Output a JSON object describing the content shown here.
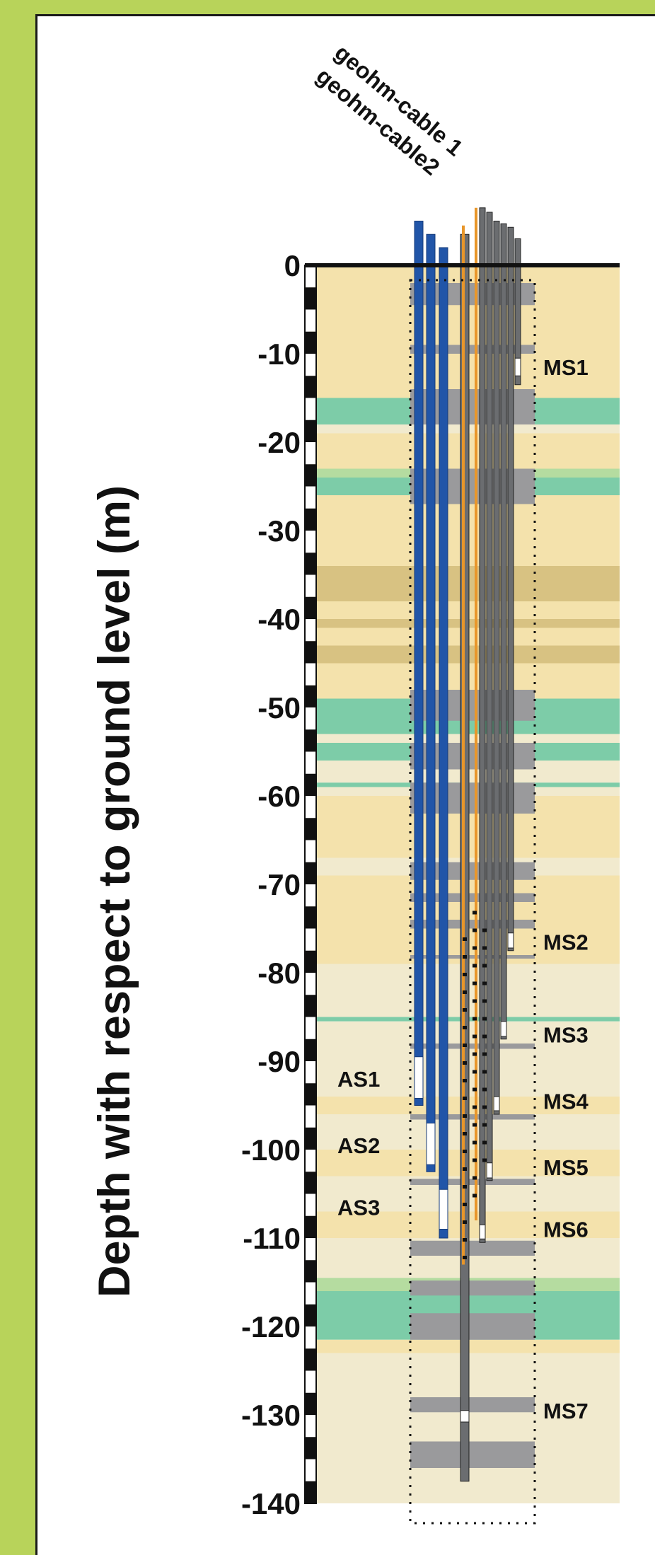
{
  "axis": {
    "title": "Depth with respect to ground level (m)",
    "min": -140,
    "max": 0,
    "ticks": [
      "0",
      "-10",
      "-20",
      "-30",
      "-40",
      "-50",
      "-60",
      "-70",
      "-80",
      "-90",
      "-100",
      "-110",
      "-120",
      "-130",
      "-140"
    ]
  },
  "cable_labels": [
    "geohm-cable 1",
    "geohm-cable2"
  ],
  "ms_labels": [
    {
      "label": "MS1",
      "depth": -11.5
    },
    {
      "label": "MS2",
      "depth": -76.5
    },
    {
      "label": "MS3",
      "depth": -87
    },
    {
      "label": "MS4",
      "depth": -94.5
    },
    {
      "label": "MS5",
      "depth": -102
    },
    {
      "label": "MS6",
      "depth": -109
    },
    {
      "label": "MS7",
      "depth": -129.5
    }
  ],
  "as_labels": [
    {
      "label": "AS1",
      "depth": -92
    },
    {
      "label": "AS2",
      "depth": -99.5
    },
    {
      "label": "AS3",
      "depth": -106.5
    }
  ],
  "colors": {
    "frame_background": "#b8d35a",
    "sand": "#f4e2ac",
    "light_sand": "#f1eace",
    "dark_sand": "#d8c282",
    "clay": "#7dcca8",
    "clay_transition": "#b5dca0",
    "gray_layer": "#9a9a9c",
    "blue_tube": "#2155a8",
    "orange_cable": "#e8962a",
    "gray_tube": "#6b6d70"
  },
  "strata": [
    {
      "top": 0,
      "bottom": -15,
      "type": "sand"
    },
    {
      "top": -15,
      "bottom": -18,
      "type": "clay"
    },
    {
      "top": -18,
      "bottom": -19,
      "type": "light_sand"
    },
    {
      "top": -19,
      "bottom": -23,
      "type": "sand"
    },
    {
      "top": -23,
      "bottom": -24,
      "type": "clay_transition"
    },
    {
      "top": -24,
      "bottom": -26,
      "type": "clay"
    },
    {
      "top": -26,
      "bottom": -34,
      "type": "sand"
    },
    {
      "top": -34,
      "bottom": -38,
      "type": "dark_sand"
    },
    {
      "top": -38,
      "bottom": -40,
      "type": "sand"
    },
    {
      "top": -40,
      "bottom": -41,
      "type": "dark_sand"
    },
    {
      "top": -41,
      "bottom": -43,
      "type": "sand"
    },
    {
      "top": -43,
      "bottom": -45,
      "type": "dark_sand"
    },
    {
      "top": -45,
      "bottom": -49,
      "type": "sand"
    },
    {
      "top": -49,
      "bottom": -53,
      "type": "clay"
    },
    {
      "top": -53,
      "bottom": -54,
      "type": "light_sand"
    },
    {
      "top": -54,
      "bottom": -56,
      "type": "clay"
    },
    {
      "top": -56,
      "bottom": -58.5,
      "type": "light_sand"
    },
    {
      "top": -58.5,
      "bottom": -59,
      "type": "clay"
    },
    {
      "top": -59,
      "bottom": -60,
      "type": "light_sand"
    },
    {
      "top": -60,
      "bottom": -67,
      "type": "sand"
    },
    {
      "top": -67,
      "bottom": -69,
      "type": "light_sand"
    },
    {
      "top": -69,
      "bottom": -76,
      "type": "sand"
    },
    {
      "top": -76,
      "bottom": -79,
      "type": "sand"
    },
    {
      "top": -79,
      "bottom": -85,
      "type": "light_sand"
    },
    {
      "top": -85,
      "bottom": -85.5,
      "type": "clay"
    },
    {
      "top": -85.5,
      "bottom": -94,
      "type": "light_sand"
    },
    {
      "top": -94,
      "bottom": -96,
      "type": "sand"
    },
    {
      "top": -96,
      "bottom": -100,
      "type": "light_sand"
    },
    {
      "top": -100,
      "bottom": -103,
      "type": "sand"
    },
    {
      "top": -103,
      "bottom": -107,
      "type": "light_sand"
    },
    {
      "top": -107,
      "bottom": -110,
      "type": "sand"
    },
    {
      "top": -110,
      "bottom": -114.5,
      "type": "light_sand"
    },
    {
      "top": -114.5,
      "bottom": -116,
      "type": "clay_transition"
    },
    {
      "top": -116,
      "bottom": -121.5,
      "type": "clay"
    },
    {
      "top": -121.5,
      "bottom": -123,
      "type": "sand"
    },
    {
      "top": -123,
      "bottom": -140,
      "type": "light_sand"
    }
  ],
  "gray_layers": [
    {
      "top": -2,
      "bottom": -4.5
    },
    {
      "top": -9,
      "bottom": -10
    },
    {
      "top": -14,
      "bottom": -18
    },
    {
      "top": -23,
      "bottom": -27
    },
    {
      "top": -48,
      "bottom": -51.5
    },
    {
      "top": -54,
      "bottom": -57
    },
    {
      "top": -58.5,
      "bottom": -62
    },
    {
      "top": -67.5,
      "bottom": -69.5
    },
    {
      "top": -71,
      "bottom": -72
    },
    {
      "top": -74,
      "bottom": -75
    },
    {
      "top": -78,
      "bottom": -78.4
    },
    {
      "top": -88,
      "bottom": -88.6
    },
    {
      "top": -96,
      "bottom": -96.6
    },
    {
      "top": -103.3,
      "bottom": -104
    },
    {
      "top": -110.3,
      "bottom": -112
    },
    {
      "top": -114.8,
      "bottom": -116.5
    },
    {
      "top": -118.5,
      "bottom": -121.5
    },
    {
      "top": -128,
      "bottom": -129.7
    },
    {
      "top": -133,
      "bottom": -136
    }
  ],
  "blue_tubes": [
    {
      "top": 5,
      "bottom": -95,
      "screen_top": -89.5,
      "screen_bottom": -94.2
    },
    {
      "top": 3.5,
      "bottom": -102.5,
      "screen_top": -97,
      "screen_bottom": -101.7
    },
    {
      "top": 2,
      "bottom": -110,
      "screen_top": -104.5,
      "screen_bottom": -109
    }
  ],
  "gray_tubes": [
    {
      "top": 3,
      "bottom": -13.5,
      "screen_top": -10.5,
      "screen_bottom": -12.5
    },
    {
      "top": 4.3,
      "bottom": -77.5,
      "screen_top": -75.5,
      "screen_bottom": -77.2
    },
    {
      "top": 4.7,
      "bottom": -87.5,
      "screen_top": -85.5,
      "screen_bottom": -87.2
    },
    {
      "top": 5,
      "bottom": -96,
      "screen_top": -94,
      "screen_bottom": -95.6
    },
    {
      "top": 6,
      "bottom": -103.5,
      "screen_top": -101.5,
      "screen_bottom": -103.2
    },
    {
      "top": 6.5,
      "bottom": -110.5,
      "screen_top": -108.5,
      "screen_bottom": -110.1
    },
    {
      "top": 3.5,
      "bottom": -137.5,
      "screen_top": -129.5,
      "screen_bottom": -130.8
    }
  ],
  "orange_cables": [
    {
      "top": 4.5,
      "bottom": -113
    },
    {
      "top": 6.5,
      "bottom": -108
    }
  ],
  "electrode_ranges": [
    {
      "from": -76,
      "to": -113,
      "step": 2
    },
    {
      "from": -73,
      "to": -106,
      "step": 2
    },
    {
      "from": -75,
      "to": -102,
      "step": 2
    }
  ]
}
